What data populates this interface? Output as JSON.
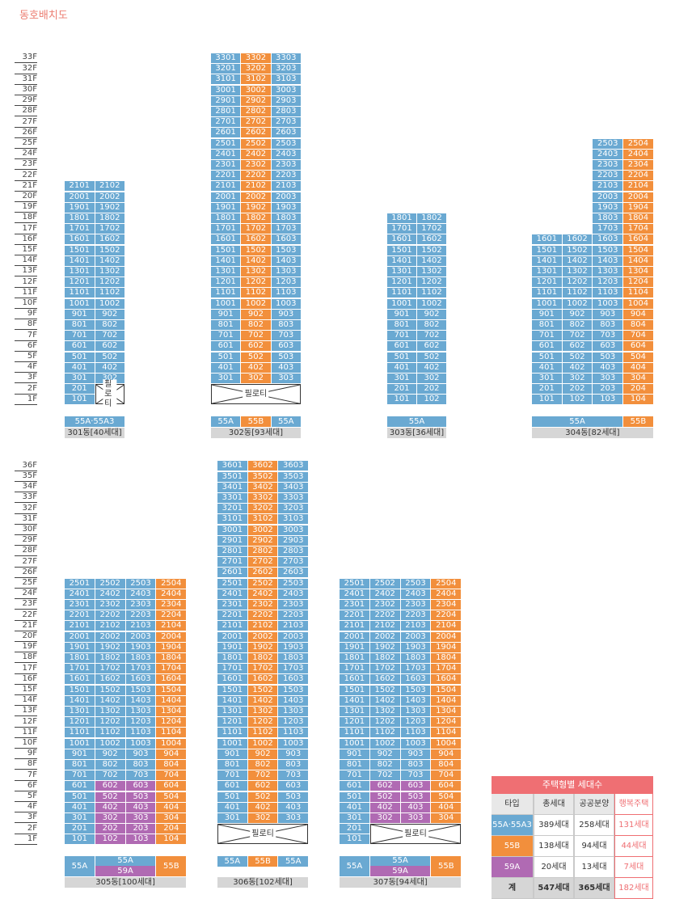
{
  "title": "동호배치도",
  "colors": {
    "55A": "#6aa9d2",
    "55B": "#f28f3c",
    "59A": "#b06ab3",
    "accent": "#ef6f73"
  },
  "piloti_label": "필로티",
  "buildings": [
    {
      "id": "301",
      "name": "301동[40세대]",
      "type_labels": [
        "55A·55A3"
      ],
      "max_floor": 21,
      "units": [
        "01",
        "02"
      ],
      "piloti": {
        "floor_from": 1,
        "floor_to": 2,
        "units": [
          "02"
        ]
      },
      "special": []
    },
    {
      "id": "302",
      "name": "302동[93세대]",
      "type_labels": [
        "55A",
        "55B",
        "55A"
      ],
      "max_floor": 33,
      "units": [
        "01",
        "02",
        "03"
      ],
      "piloti": {
        "floor_from": 1,
        "floor_to": 2,
        "units": [
          "01",
          "02",
          "03"
        ]
      },
      "special": []
    },
    {
      "id": "303",
      "name": "303동[36세대]",
      "type_labels": [
        "55A"
      ],
      "max_floor": 18,
      "units": [
        "01",
        "02"
      ],
      "piloti": null,
      "special": []
    },
    {
      "id": "304",
      "name": "304동[82세대]",
      "type_labels": [
        "55A",
        "55B"
      ],
      "max_floor": 25,
      "units": [
        "01",
        "02",
        "03",
        "04"
      ],
      "piloti": null,
      "special": []
    },
    {
      "id": "305",
      "name": "305동[100세대]",
      "type_labels": [
        "55A",
        "55A",
        "59A",
        "55B"
      ],
      "max_floor": 25,
      "units": [
        "01",
        "02",
        "03",
        "04"
      ],
      "piloti": null,
      "special": [
        {
          "unit": "02",
          "floors": [
            1,
            6
          ]
        },
        {
          "unit": "03",
          "floors": [
            1,
            6
          ]
        }
      ]
    },
    {
      "id": "306",
      "name": "306동[102세대]",
      "type_labels": [
        "55A",
        "55B",
        "55A"
      ],
      "max_floor": 36,
      "units": [
        "01",
        "02",
        "03"
      ],
      "piloti": {
        "floor_from": 1,
        "floor_to": 2,
        "units": [
          "01",
          "02",
          "03"
        ]
      },
      "special": []
    },
    {
      "id": "307",
      "name": "307동[94세대]",
      "type_labels": [
        "55A",
        "55A",
        "59A",
        "55B"
      ],
      "max_floor": 25,
      "units": [
        "01",
        "02",
        "03",
        "04"
      ],
      "piloti": {
        "floor_from": 1,
        "floor_to": 2,
        "units": [
          "02",
          "03",
          "04"
        ]
      },
      "special": [
        {
          "unit": "02",
          "floors": [
            3,
            6
          ]
        },
        {
          "unit": "03",
          "floors": [
            3,
            6
          ]
        }
      ]
    }
  ],
  "building_304_lower_floors": 16,
  "floor_axes": [
    {
      "max_floor": 33
    },
    {
      "max_floor": 36
    }
  ],
  "legend": {
    "title": "주택형별 세대수",
    "headers": [
      "타입",
      "총세대",
      "공공분양",
      "행복주택"
    ],
    "rows": [
      {
        "type": "55A·55A3",
        "total": "389세대",
        "public": "258세대",
        "happy": "131세대",
        "color": "#6aa9d2"
      },
      {
        "type": "55B",
        "total": "138세대",
        "public": "94세대",
        "happy": "44세대",
        "color": "#f28f3c"
      },
      {
        "type": "59A",
        "total": "20세대",
        "public": "13세대",
        "happy": "7세대",
        "color": "#b06ab3"
      }
    ],
    "sum": {
      "type": "계",
      "total": "547세대",
      "public": "365세대",
      "happy": "182세대"
    }
  }
}
